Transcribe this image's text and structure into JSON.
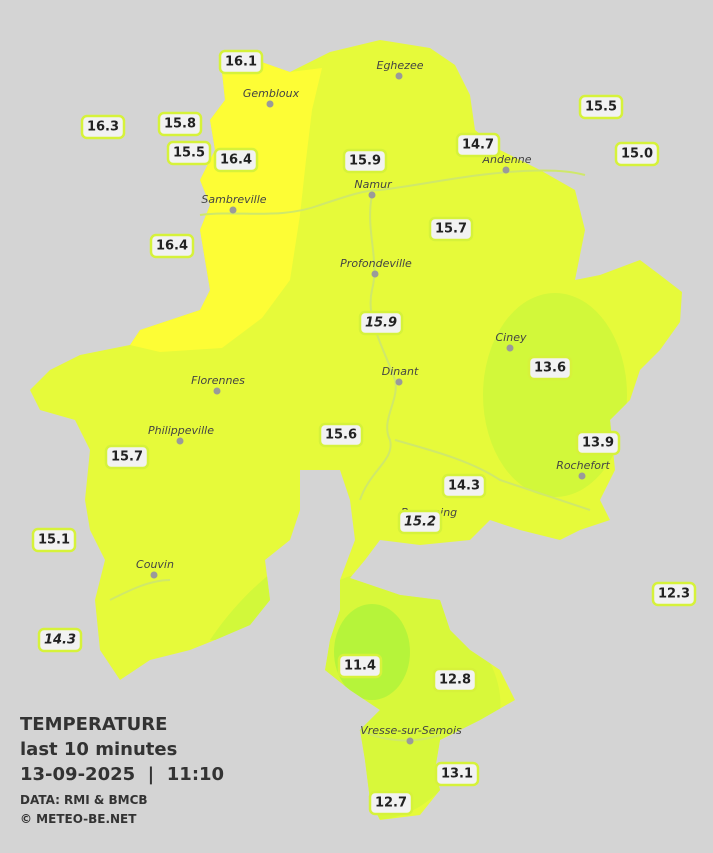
{
  "legend": {
    "title": "TEMPERATURE",
    "subtitle": "last 10 minutes",
    "datetime": "13-09-2025  |  11:10",
    "source": "DATA: RMI & BMCB",
    "credit": "© METEO-BE.NET"
  },
  "towns": [
    {
      "name": "Eghezee"
    },
    {
      "name": "Gembloux"
    },
    {
      "name": "Andenne"
    },
    {
      "name": "Namur"
    },
    {
      "name": "Sambreville"
    },
    {
      "name": "Profondeville"
    },
    {
      "name": "Ciney"
    },
    {
      "name": "Dinant"
    },
    {
      "name": "Florennes"
    },
    {
      "name": "Philippeville"
    },
    {
      "name": "Rochefort"
    },
    {
      "name": "Beauraing"
    },
    {
      "name": "Couvin"
    },
    {
      "name": "Vresse-sur-Semois"
    }
  ],
  "stations": [
    {
      "value": "16.1"
    },
    {
      "value": "16.3"
    },
    {
      "value": "15.8"
    },
    {
      "value": "15.5"
    },
    {
      "value": "16.4"
    },
    {
      "value": "15.9"
    },
    {
      "value": "14.7"
    },
    {
      "value": "15.5"
    },
    {
      "value": "15.0"
    },
    {
      "value": "15.7"
    },
    {
      "value": "16.4"
    },
    {
      "value": "15.9",
      "italic": true
    },
    {
      "value": "13.6"
    },
    {
      "value": "15.6"
    },
    {
      "value": "13.9"
    },
    {
      "value": "15.7"
    },
    {
      "value": "14.3"
    },
    {
      "value": "15.2",
      "italic": true
    },
    {
      "value": "15.1"
    },
    {
      "value": "12.3"
    },
    {
      "value": "14.3",
      "italic": true
    },
    {
      "value": "11.4"
    },
    {
      "value": "12.8"
    },
    {
      "value": "13.1"
    },
    {
      "value": "12.7"
    }
  ]
}
